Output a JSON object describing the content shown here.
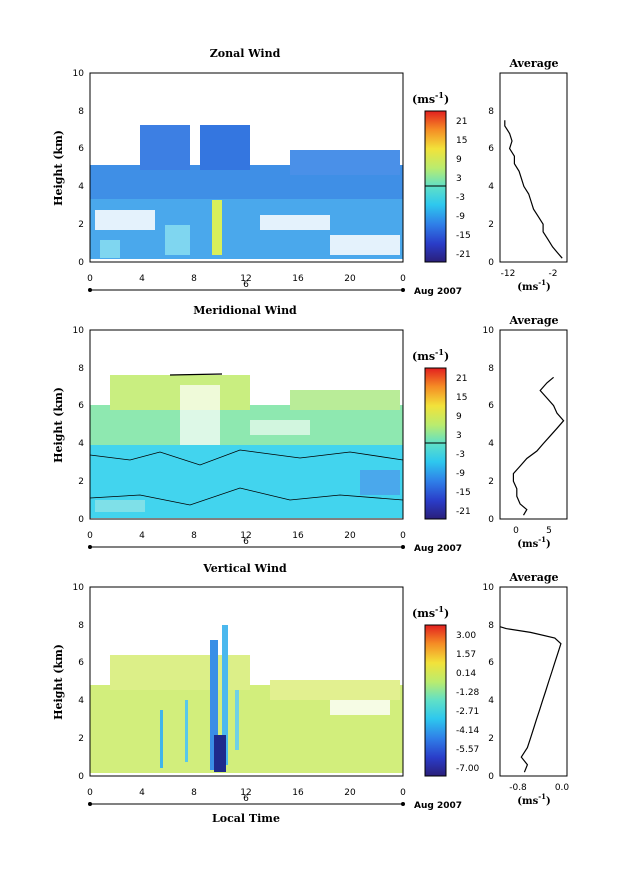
{
  "panels": [
    {
      "title": "Zonal Wind",
      "ylabel": "Height (km)",
      "xticks": [
        "0",
        "4",
        "8",
        "12",
        "16",
        "20",
        "0"
      ],
      "yticks": [
        "0",
        "2",
        "4",
        "6",
        "8",
        "10"
      ],
      "date_day": "6",
      "date_label": "Aug 2007",
      "unit": "(ms",
      "unit_sup": "-1",
      "unit_close": ")",
      "cbar_ticks": [
        "21",
        "15",
        "9",
        "3",
        "-3",
        "-9",
        "-15",
        "-21"
      ],
      "avg_title": "Average",
      "avg_xticks": [
        "-12",
        "-2"
      ],
      "avg_yticks": [
        "0",
        "2",
        "4",
        "6",
        "8"
      ],
      "avg_xlabel": "(ms",
      "avg_xlabel_sup": "-1",
      "avg_xlabel_close": ")"
    },
    {
      "title": "Meridional Wind",
      "ylabel": "Height (km)",
      "xticks": [
        "0",
        "4",
        "8",
        "12",
        "16",
        "20",
        "0"
      ],
      "yticks": [
        "0",
        "2",
        "4",
        "6",
        "8",
        "10"
      ],
      "date_day": "6",
      "date_label": "Aug 2007",
      "unit": "(ms",
      "unit_sup": "-1",
      "unit_close": ")",
      "cbar_ticks": [
        "21",
        "15",
        "9",
        "3",
        "-3",
        "-9",
        "-15",
        "-21"
      ],
      "avg_title": "Average",
      "avg_xticks": [
        "0",
        "5"
      ],
      "avg_yticks": [
        "0",
        "2",
        "4",
        "6",
        "8",
        "10"
      ],
      "avg_xlabel": "(ms",
      "avg_xlabel_sup": "-1",
      "avg_xlabel_close": ")"
    },
    {
      "title": "Vertical Wind",
      "ylabel": "Height (km)",
      "xlabel": "Local Time",
      "xticks": [
        "0",
        "4",
        "8",
        "12",
        "16",
        "20",
        "0"
      ],
      "yticks": [
        "0",
        "2",
        "4",
        "6",
        "8",
        "10"
      ],
      "date_day": "6",
      "date_label": "Aug 2007",
      "unit": "(ms",
      "unit_sup": "-1",
      "unit_close": ")",
      "cbar_ticks": [
        "3.00",
        "1.57",
        "0.14",
        "-1.28",
        "-2.71",
        "-4.14",
        "-5.57",
        "-7.00"
      ],
      "avg_title": "Average",
      "avg_xticks": [
        "-0.8",
        "0.0"
      ],
      "avg_yticks": [
        "0",
        "2",
        "4",
        "6",
        "8",
        "10"
      ],
      "avg_xlabel": "(ms",
      "avg_xlabel_sup": "-1",
      "avg_xlabel_close": ")"
    }
  ],
  "chart_data": [
    {
      "type": "heatmap",
      "title": "Zonal Wind",
      "ylabel": "Height (km)",
      "xlim": [
        0,
        24
      ],
      "ylim": [
        0,
        10
      ],
      "clim": [
        -24,
        24
      ],
      "colorbar_ticks": [
        21,
        15,
        9,
        3,
        -3,
        -9,
        -15,
        -21
      ],
      "average_profile": {
        "xlim": [
          -14,
          0
        ],
        "xticks": [
          -12,
          -2
        ],
        "height": [
          0.2,
          0.5,
          0.8,
          1.2,
          1.6,
          2.0,
          2.4,
          2.8,
          3.2,
          3.6,
          4.0,
          4.4,
          4.8,
          5.2,
          5.6,
          6.0,
          6.4,
          6.8,
          7.2,
          7.5
        ],
        "wind": [
          -1,
          -2,
          -3,
          -4,
          -5,
          -5,
          -6,
          -7,
          -7.5,
          -8,
          -9,
          -9.5,
          -10,
          -11,
          -11,
          -12,
          -11.5,
          -12,
          -13,
          -13
        ]
      }
    },
    {
      "type": "heatmap",
      "title": "Meridional Wind",
      "ylabel": "Height (km)",
      "xlim": [
        0,
        24
      ],
      "ylim": [
        0,
        10
      ],
      "clim": [
        -24,
        24
      ],
      "colorbar_ticks": [
        21,
        15,
        9,
        3,
        -3,
        -9,
        -15,
        -21
      ],
      "average_profile": {
        "xlim": [
          -3,
          7
        ],
        "xticks": [
          0,
          5
        ],
        "height": [
          0.2,
          0.5,
          0.8,
          1.2,
          1.6,
          2.0,
          2.4,
          2.8,
          3.2,
          3.6,
          4.0,
          4.4,
          4.8,
          5.2,
          5.6,
          6.0,
          6.4,
          6.8,
          7.2,
          7.5
        ],
        "wind": [
          0.5,
          1,
          0,
          -0.5,
          -0.5,
          -1,
          -1,
          0,
          1,
          2.5,
          3.5,
          4.5,
          5.5,
          6.5,
          5.5,
          5,
          4,
          3,
          4,
          5
        ]
      }
    },
    {
      "type": "heatmap",
      "title": "Vertical Wind",
      "xlabel": "Local Time",
      "ylabel": "Height (km)",
      "xlim": [
        0,
        24
      ],
      "ylim": [
        0,
        10
      ],
      "clim": [
        -7.0,
        3.0
      ],
      "colorbar_ticks": [
        3.0,
        1.57,
        0.14,
        -1.28,
        -2.71,
        -4.14,
        -5.57,
        -7.0
      ],
      "average_profile": {
        "xlim": [
          -1.0,
          0.1
        ],
        "xticks": [
          -0.8,
          0.0
        ],
        "height": [
          0.2,
          0.6,
          1.0,
          1.5,
          2.0,
          2.5,
          3.0,
          3.5,
          4.0,
          4.5,
          5.0,
          5.5,
          6.0,
          6.5,
          7.0,
          7.3,
          7.6,
          7.8,
          7.9
        ],
        "wind": [
          -0.6,
          -0.55,
          -0.65,
          -0.55,
          -0.5,
          -0.45,
          -0.4,
          -0.35,
          -0.3,
          -0.25,
          -0.2,
          -0.15,
          -0.1,
          -0.05,
          0.0,
          -0.1,
          -0.5,
          -0.9,
          -1.0
        ]
      }
    }
  ]
}
